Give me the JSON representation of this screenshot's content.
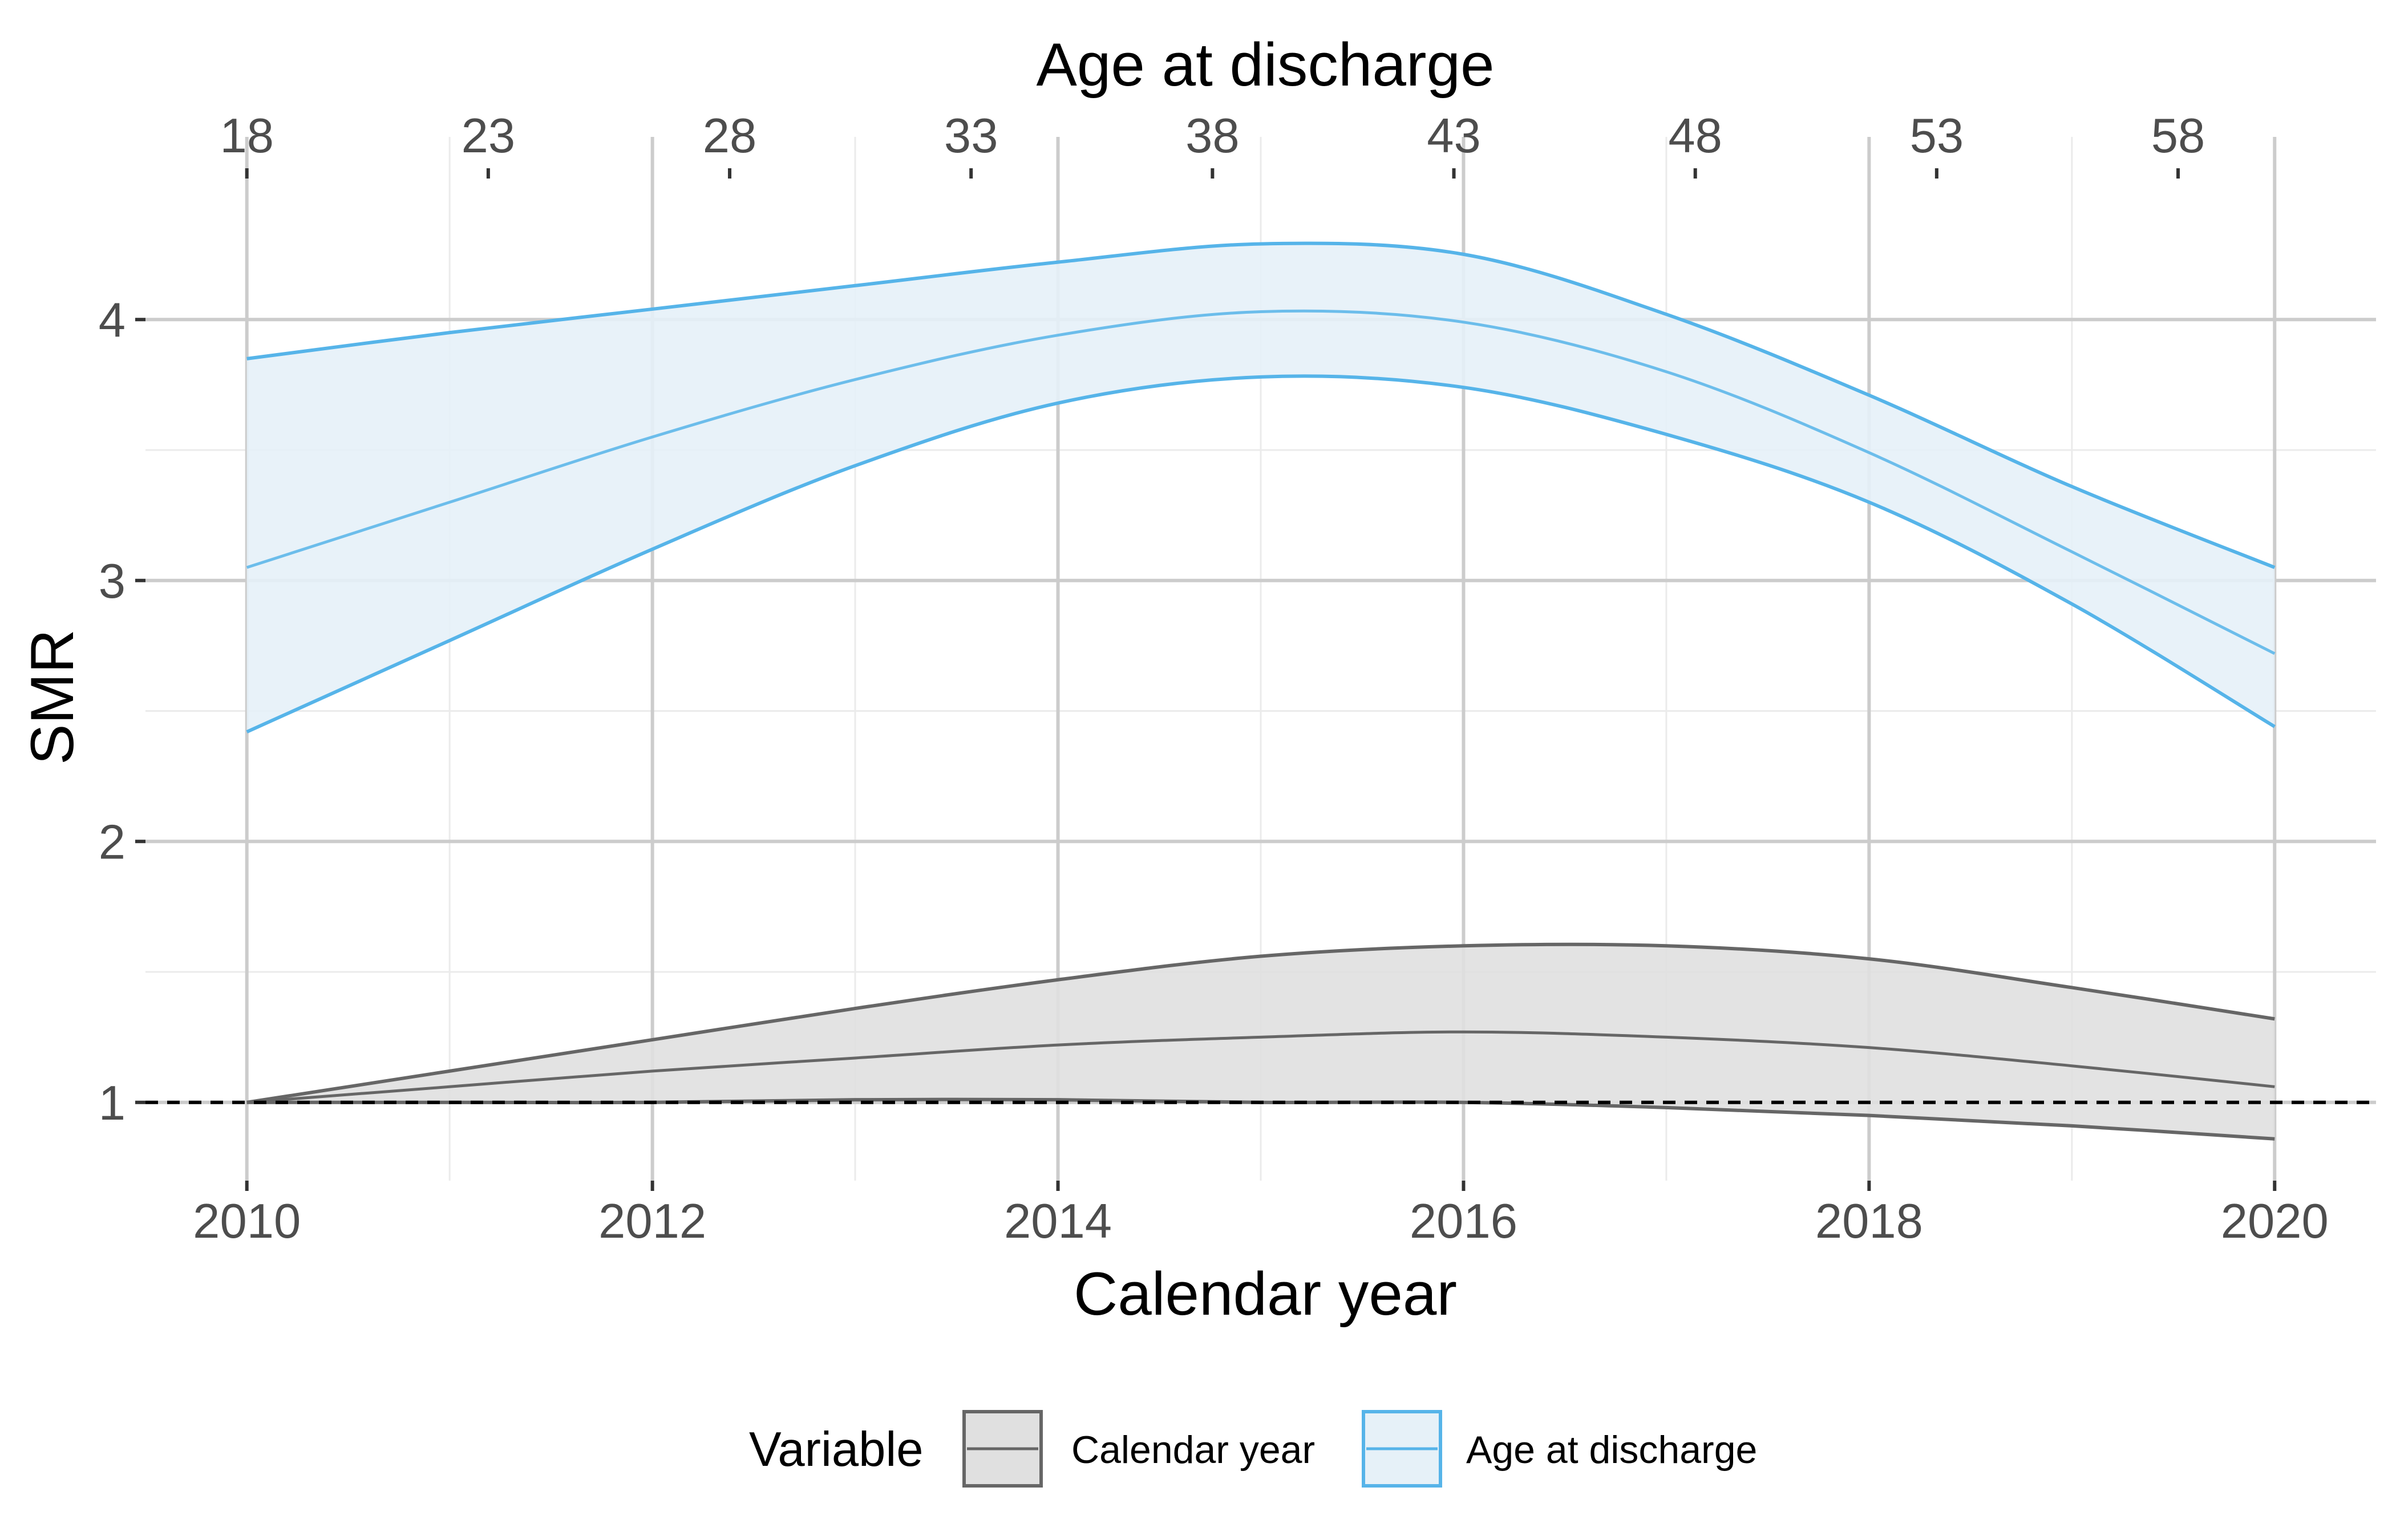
{
  "chart_data": {
    "type": "line",
    "xlabel": "Calendar year",
    "ylabel": "SMR",
    "x2label": "Age at discharge",
    "xlim": [
      2009.5,
      2020.5
    ],
    "ylim": [
      0.7,
      4.7
    ],
    "x_ticks": [
      2010,
      2012,
      2014,
      2016,
      2018,
      2020
    ],
    "x_ticks_labels": [
      "2010",
      "2012",
      "2014",
      "2016",
      "2018",
      "2020"
    ],
    "x_minor_ticks": [
      2011,
      2013,
      2015,
      2017,
      2019
    ],
    "x2_ticks": [
      18,
      23,
      28,
      33,
      38,
      43,
      48,
      53,
      58
    ],
    "x2_ticks_labels": [
      "18",
      "23",
      "28",
      "33",
      "38",
      "43",
      "48",
      "53",
      "58"
    ],
    "x2_range_ages": [
      18,
      60
    ],
    "y_ticks": [
      1,
      2,
      3,
      4
    ],
    "y_ticks_labels": [
      "1",
      "2",
      "3",
      "4"
    ],
    "y_minor_ticks": [
      1.5,
      2.5,
      3.5
    ],
    "reference_line": {
      "y": 1,
      "style": "dashed",
      "color": "#000000"
    },
    "grid": true,
    "legend": {
      "title": "Variable",
      "position": "bottom",
      "entries": [
        "Calendar year",
        "Age at discharge"
      ]
    },
    "x": [
      2010,
      2011,
      2012,
      2013,
      2014,
      2015,
      2016,
      2017,
      2018,
      2019,
      2020
    ],
    "series": [
      {
        "name": "Calendar year",
        "line_color": "#666666",
        "fill_color": "#e0e0e0",
        "estimate": [
          1.0,
          1.06,
          1.12,
          1.17,
          1.22,
          1.25,
          1.27,
          1.25,
          1.21,
          1.14,
          1.06
        ],
        "lower": [
          1.0,
          1.0,
          1.0,
          1.01,
          1.01,
          1.0,
          1.0,
          0.98,
          0.95,
          0.91,
          0.86
        ],
        "upper": [
          1.0,
          1.12,
          1.24,
          1.36,
          1.47,
          1.56,
          1.6,
          1.6,
          1.55,
          1.44,
          1.32
        ]
      },
      {
        "name": "Age at discharge",
        "line_color": "#56b4e9",
        "fill_color": "#e6f1f8",
        "estimate": [
          3.05,
          3.3,
          3.55,
          3.77,
          3.94,
          4.03,
          3.99,
          3.8,
          3.49,
          3.11,
          2.72
        ],
        "lower": [
          2.42,
          2.77,
          3.12,
          3.44,
          3.68,
          3.78,
          3.74,
          3.56,
          3.3,
          2.91,
          2.44
        ],
        "upper": [
          3.85,
          3.95,
          4.04,
          4.13,
          4.22,
          4.29,
          4.25,
          4.02,
          3.71,
          3.36,
          3.05
        ]
      }
    ]
  }
}
